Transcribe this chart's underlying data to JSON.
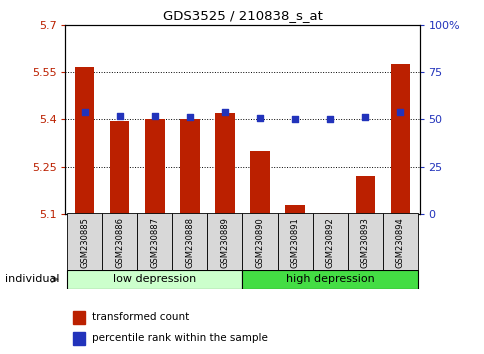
{
  "title": "GDS3525 / 210838_s_at",
  "samples": [
    "GSM230885",
    "GSM230886",
    "GSM230887",
    "GSM230888",
    "GSM230889",
    "GSM230890",
    "GSM230891",
    "GSM230892",
    "GSM230893",
    "GSM230894"
  ],
  "red_values": [
    5.565,
    5.395,
    5.4,
    5.4,
    5.42,
    5.3,
    5.13,
    5.105,
    5.22,
    5.575
  ],
  "blue_values": [
    54,
    52,
    52,
    51.5,
    54,
    51,
    50.5,
    50,
    51.5,
    54
  ],
  "ylim_left": [
    5.1,
    5.7
  ],
  "ylim_right": [
    0,
    100
  ],
  "yticks_left": [
    5.1,
    5.25,
    5.4,
    5.55,
    5.7
  ],
  "yticks_right": [
    0,
    25,
    50,
    75,
    100
  ],
  "ytick_labels_left": [
    "5.1",
    "5.25",
    "5.4",
    "5.55",
    "5.7"
  ],
  "ytick_labels_right": [
    "0",
    "25",
    "50",
    "75",
    "100%"
  ],
  "group1_label": "low depression",
  "group2_label": "high depression",
  "group1_count": 5,
  "legend_red": "transformed count",
  "legend_blue": "percentile rank within the sample",
  "individual_label": "individual",
  "red_color": "#bb2000",
  "blue_color": "#2233bb",
  "group1_bg": "#ccffcc",
  "group2_bg": "#44dd44",
  "bar_bottom": 5.1,
  "bar_width": 0.55,
  "xlim": [
    -0.55,
    9.55
  ]
}
